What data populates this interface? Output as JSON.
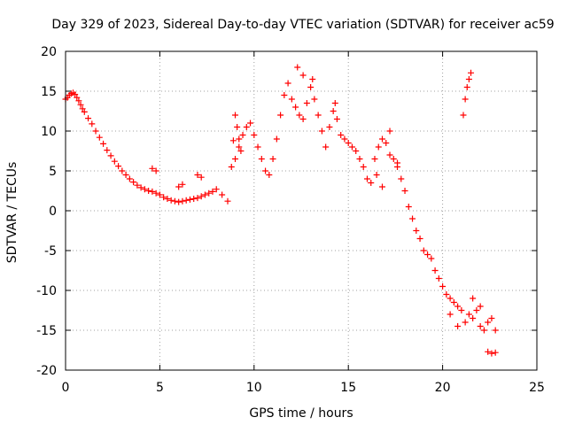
{
  "chart_data": {
    "type": "scatter",
    "title": "Day 329 of 2023, Sidereal Day-to-day VTEC variation (SDTVAR) for receiver ac59",
    "xlabel": "GPS time / hours",
    "ylabel": "SDTVAR / TECUs",
    "xlim": [
      0,
      25
    ],
    "ylim": [
      -20,
      20
    ],
    "xticks": [
      0,
      5,
      10,
      15,
      20,
      25
    ],
    "yticks": [
      -20,
      -15,
      -10,
      -5,
      0,
      5,
      10,
      15,
      20
    ],
    "xtick_labels": [
      "0",
      "5",
      "10",
      "15",
      "20",
      "25"
    ],
    "ytick_labels": [
      "-20",
      "-15",
      "-10",
      "-5",
      "0",
      "5",
      "10",
      "15",
      "20"
    ],
    "grid": true,
    "marker": "+",
    "color": "#ff0000",
    "series": [
      {
        "name": "ac59",
        "x": [
          0.0,
          0.1,
          0.2,
          0.3,
          0.4,
          0.5,
          0.6,
          0.7,
          0.8,
          0.9,
          1.0,
          1.2,
          1.4,
          1.6,
          1.8,
          2.0,
          2.2,
          2.4,
          2.6,
          2.8,
          3.0,
          3.2,
          3.4,
          3.6,
          3.8,
          4.0,
          4.2,
          4.4,
          4.6,
          4.8,
          5.0,
          5.2,
          5.4,
          5.6,
          5.8,
          6.0,
          6.2,
          6.4,
          6.6,
          6.8,
          7.0,
          7.2,
          7.4,
          7.6,
          7.8,
          8.0,
          8.3,
          8.6,
          8.8,
          9.0,
          9.2,
          9.4,
          9.6,
          9.8,
          10.0,
          10.2,
          10.4,
          10.6,
          10.8,
          11.0,
          11.2,
          11.4,
          11.6,
          11.8,
          12.0,
          12.2,
          12.4,
          12.6,
          12.8,
          13.0,
          13.2,
          13.4,
          13.6,
          13.8,
          14.0,
          14.2,
          14.4,
          14.6,
          14.8,
          15.0,
          15.2,
          15.4,
          15.6,
          15.8,
          16.0,
          16.2,
          16.4,
          16.6,
          16.8,
          17.0,
          17.2,
          17.4,
          17.6,
          17.8,
          18.0,
          18.2,
          18.4,
          18.6,
          18.8,
          19.0,
          19.2,
          19.4,
          19.6,
          19.8,
          20.0,
          20.2,
          20.4,
          20.6,
          20.8,
          21.0,
          21.2,
          21.4,
          21.6,
          21.8,
          22.0,
          22.2,
          22.4,
          22.6,
          22.8,
          21.1,
          21.2,
          21.3,
          21.4,
          21.5,
          22.4,
          22.6,
          22.8,
          4.6,
          4.8,
          7.2,
          7.0,
          6.0,
          6.2,
          8.9,
          9.0,
          9.1,
          9.2,
          9.3,
          12.3,
          12.6,
          13.1,
          14.3,
          16.5,
          16.8,
          17.2,
          17.6,
          20.4,
          20.8,
          21.6,
          22.0
        ],
        "y": [
          14.0,
          14.2,
          14.5,
          14.7,
          14.8,
          14.6,
          14.2,
          13.8,
          13.3,
          12.8,
          12.4,
          11.6,
          10.9,
          10.0,
          9.2,
          8.4,
          7.6,
          6.9,
          6.2,
          5.6,
          5.0,
          4.5,
          4.0,
          3.6,
          3.2,
          2.9,
          2.7,
          2.5,
          2.4,
          2.2,
          2.0,
          1.7,
          1.5,
          1.3,
          1.2,
          1.1,
          1.2,
          1.3,
          1.4,
          1.5,
          1.6,
          1.8,
          2.0,
          2.2,
          2.4,
          2.7,
          2.0,
          1.2,
          5.5,
          6.5,
          8.0,
          9.5,
          10.5,
          11.0,
          9.5,
          8.0,
          6.5,
          5.0,
          4.5,
          6.5,
          9.0,
          12.0,
          14.5,
          16.0,
          14.0,
          13.0,
          12.0,
          11.5,
          13.5,
          15.5,
          14.0,
          12.0,
          10.0,
          8.0,
          10.5,
          12.5,
          11.5,
          9.5,
          9.0,
          8.5,
          8.0,
          7.5,
          6.5,
          5.5,
          4.0,
          3.5,
          6.5,
          8.0,
          9.0,
          8.5,
          7.0,
          6.5,
          5.5,
          4.0,
          2.5,
          0.5,
          -1.0,
          -2.5,
          -3.5,
          -5.0,
          -5.5,
          -6.0,
          -7.5,
          -8.5,
          -9.5,
          -10.5,
          -11.0,
          -11.5,
          -12.0,
          -12.5,
          -14.0,
          -13.0,
          -11.0,
          -12.5,
          -14.5,
          -15.0,
          -14.0,
          -13.5,
          -15.0,
          12.0,
          14.0,
          15.5,
          16.5,
          17.3,
          -17.7,
          -17.9,
          -17.8,
          5.3,
          5.0,
          4.2,
          4.5,
          3.0,
          3.3,
          8.8,
          12.0,
          10.5,
          9.0,
          7.5,
          18.0,
          17.0,
          16.5,
          13.5,
          4.5,
          3.0,
          10.0,
          6.0,
          -13.0,
          -14.5,
          -13.5,
          -12.0
        ]
      }
    ]
  }
}
